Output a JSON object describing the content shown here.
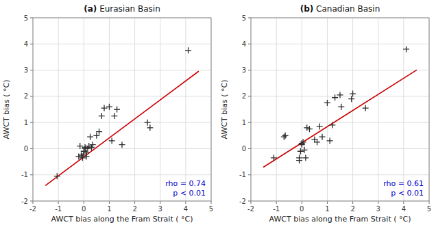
{
  "chart_data": [
    {
      "type": "scatter",
      "title": "(a) Eurasian Basin",
      "xlabel": "AWCT bias along the Fram Strait ( °C)",
      "ylabel": "AWCT bias ( °C)",
      "xlim": [
        -2,
        5
      ],
      "ylim": [
        -2,
        5
      ],
      "xticks": [
        -2,
        -1,
        0,
        1,
        2,
        3,
        4,
        5
      ],
      "yticks": [
        -2,
        -1,
        0,
        1,
        2,
        3,
        4,
        5
      ],
      "grid": true,
      "annotations": [
        {
          "text": "rho = 0.74",
          "color": "#0000cc"
        },
        {
          "text": "p < 0.01",
          "color": "#0000cc"
        }
      ],
      "series": [
        {
          "type": "scatter",
          "marker": "plus",
          "color": "#2a2a2a",
          "x": [
            -1.05,
            -0.2,
            -0.15,
            -0.1,
            -0.05,
            0.0,
            0.0,
            0.05,
            0.05,
            0.1,
            0.1,
            0.15,
            0.2,
            0.25,
            0.3,
            0.35,
            0.5,
            0.6,
            0.7,
            0.8,
            1.0,
            1.1,
            1.2,
            1.3,
            1.5,
            2.5,
            2.6,
            4.1
          ],
          "values": [
            -1.05,
            -0.3,
            0.1,
            -0.25,
            -0.35,
            -0.2,
            -0.1,
            0.05,
            0.0,
            -0.3,
            -0.15,
            0.0,
            0.1,
            0.45,
            0.05,
            0.15,
            0.5,
            0.65,
            1.25,
            1.55,
            1.6,
            0.3,
            1.25,
            1.5,
            0.15,
            1.0,
            0.8,
            3.75
          ]
        },
        {
          "type": "line",
          "color": "#cc0000",
          "x": [
            -1.5,
            4.5
          ],
          "values": [
            -1.4,
            2.95
          ]
        }
      ]
    },
    {
      "type": "scatter",
      "title": "(b) Canadian Basin",
      "xlabel": "AWCT bias along the Fram Strait ( °C)",
      "ylabel": "AWCT bias ( °C)",
      "xlim": [
        -2,
        5
      ],
      "ylim": [
        -2,
        5
      ],
      "xticks": [
        -2,
        -1,
        0,
        1,
        2,
        3,
        4,
        5
      ],
      "yticks": [
        -2,
        -1,
        0,
        1,
        2,
        3,
        4,
        5
      ],
      "grid": true,
      "annotations": [
        {
          "text": "rho = 0.61",
          "color": "#0000cc"
        },
        {
          "text": "p < 0.01",
          "color": "#0000cc"
        }
      ],
      "series": [
        {
          "type": "scatter",
          "marker": "plus",
          "color": "#2a2a2a",
          "x": [
            -1.1,
            -0.7,
            -0.65,
            -0.1,
            -0.1,
            -0.05,
            0.0,
            0.0,
            0.05,
            0.1,
            0.15,
            0.2,
            0.3,
            0.5,
            0.6,
            0.7,
            0.8,
            1.0,
            1.1,
            1.2,
            1.3,
            1.5,
            1.55,
            1.95,
            2.0,
            2.5,
            4.1
          ],
          "values": [
            -0.35,
            0.45,
            0.5,
            -0.35,
            -0.45,
            -0.1,
            0.2,
            0.15,
            0.25,
            -0.05,
            -0.35,
            0.8,
            0.75,
            0.35,
            0.25,
            0.85,
            0.45,
            1.75,
            0.3,
            0.9,
            1.95,
            2.05,
            1.6,
            1.9,
            2.1,
            1.55,
            3.8
          ]
        },
        {
          "type": "line",
          "color": "#cc0000",
          "x": [
            -1.5,
            4.5
          ],
          "values": [
            -0.7,
            3.0
          ]
        }
      ]
    }
  ]
}
